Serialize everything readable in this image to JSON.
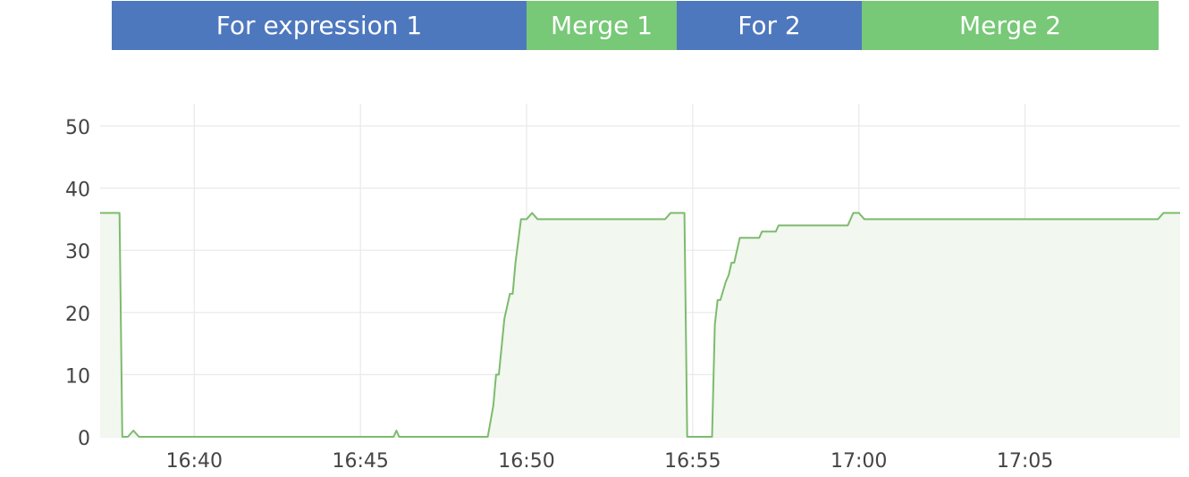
{
  "phases": [
    {
      "label": "For expression 1",
      "color": "#4e78be"
    },
    {
      "label": "Merge 1",
      "color": "#77c877"
    },
    {
      "label": "For 2",
      "color": "#4e78be"
    },
    {
      "label": "Merge 2",
      "color": "#77c877"
    }
  ],
  "chart_data": {
    "type": "area",
    "title": "",
    "xlabel": "",
    "ylabel": "",
    "ylim": [
      0,
      50
    ],
    "yticks": [
      0,
      10,
      20,
      30,
      40,
      50
    ],
    "xlim": [
      "16:37:10",
      "17:09:40"
    ],
    "xticks": [
      "16:40",
      "16:45",
      "16:50",
      "16:55",
      "17:00",
      "17:05"
    ],
    "grid": true,
    "legend": "none",
    "line_color": "#7dbb6e",
    "fill_color": "#f2f7ef",
    "series": [
      {
        "points": [
          [
            "16:37:10",
            36
          ],
          [
            "16:37:45",
            36
          ],
          [
            "16:37:50",
            0
          ],
          [
            "16:38:00",
            0
          ],
          [
            "16:38:10",
            1
          ],
          [
            "16:38:20",
            0
          ],
          [
            "16:46:00",
            0
          ],
          [
            "16:46:05",
            1
          ],
          [
            "16:46:10",
            0
          ],
          [
            "16:48:50",
            0
          ],
          [
            "16:49:00",
            5
          ],
          [
            "16:49:05",
            10
          ],
          [
            "16:49:10",
            10
          ],
          [
            "16:49:20",
            19
          ],
          [
            "16:49:30",
            23
          ],
          [
            "16:49:35",
            23
          ],
          [
            "16:49:40",
            28
          ],
          [
            "16:49:50",
            35
          ],
          [
            "16:50:00",
            35
          ],
          [
            "16:50:10",
            36
          ],
          [
            "16:50:20",
            35
          ],
          [
            "16:54:10",
            35
          ],
          [
            "16:54:20",
            36
          ],
          [
            "16:54:45",
            36
          ],
          [
            "16:54:50",
            0
          ],
          [
            "16:55:35",
            0
          ],
          [
            "16:55:40",
            18
          ],
          [
            "16:55:45",
            22
          ],
          [
            "16:55:50",
            22
          ],
          [
            "16:56:00",
            25
          ],
          [
            "16:56:05",
            26
          ],
          [
            "16:56:10",
            28
          ],
          [
            "16:56:15",
            28
          ],
          [
            "16:56:25",
            32
          ],
          [
            "16:57:00",
            32
          ],
          [
            "16:57:05",
            33
          ],
          [
            "16:57:30",
            33
          ],
          [
            "16:57:35",
            34
          ],
          [
            "16:59:40",
            34
          ],
          [
            "16:59:50",
            36
          ],
          [
            "17:00:00",
            36
          ],
          [
            "17:00:10",
            35
          ],
          [
            "17:09:00",
            35
          ],
          [
            "17:09:10",
            36
          ],
          [
            "17:09:40",
            36
          ]
        ]
      }
    ]
  }
}
